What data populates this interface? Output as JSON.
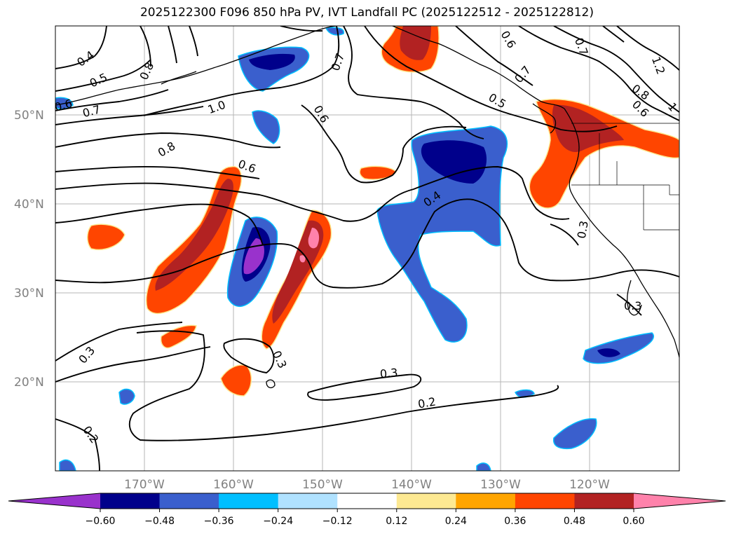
{
  "title": "2025122300 F096 850 hPa PV, IVT Landfall PC (2025122512 - 2025122812)",
  "lat_labels": [
    "50°N",
    "40°N",
    "30°N",
    "20°N"
  ],
  "lon_labels": [
    "170°W",
    "160°W",
    "150°W",
    "140°W",
    "130°W",
    "120°W"
  ],
  "colorbar": {
    "ticks": [
      "−0.60",
      "−0.48",
      "−0.36",
      "−0.24",
      "−0.12",
      "0.12",
      "0.24",
      "0.36",
      "0.48",
      "0.60"
    ],
    "colors": [
      "#9932cc",
      "#00008b",
      "#3a5fcd",
      "#00bfff",
      "#b0e2ff",
      "#ffffff",
      "#fde992",
      "#ffa500",
      "#ff4500",
      "#b22222",
      "#ff82ab"
    ]
  },
  "contour_labels": [
    "0.4",
    "0.5",
    "0.6",
    "0.7",
    "0.8",
    "1.0",
    "0.8",
    "0.6",
    "0.7",
    "0.6",
    "0.5",
    "0.7",
    "0.8",
    "0.6",
    "1.2",
    "0.7",
    "0.4",
    "0.3",
    "0.3",
    "0.3",
    "0.3",
    "0.2",
    "0.3",
    "0.2",
    "0.6",
    "1"
  ]
}
